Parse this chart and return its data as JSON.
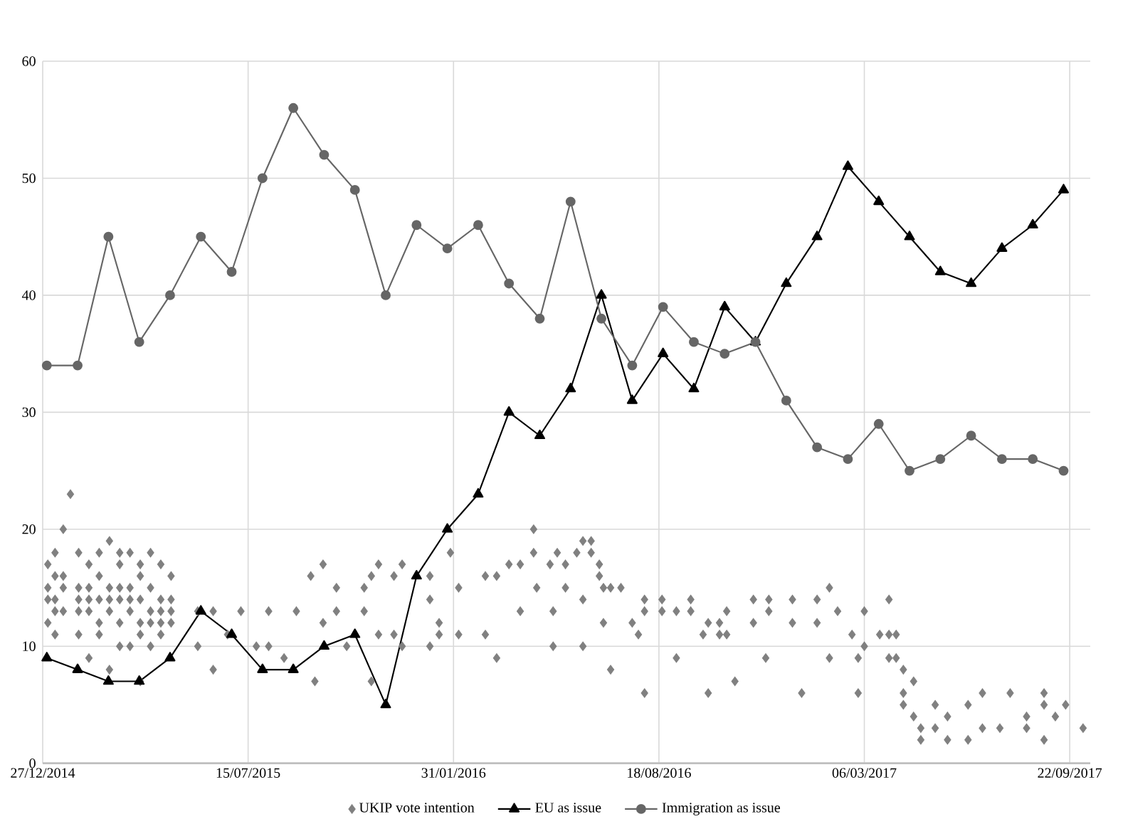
{
  "chart_data": {
    "type": "line",
    "xlim": [
      "2014-12-27",
      "2017-10-12"
    ],
    "xticks": [
      {
        "value": "2014-12-27",
        "label": "27/12/2014"
      },
      {
        "value": "2015-07-15",
        "label": "15/07/2015"
      },
      {
        "value": "2016-01-31",
        "label": "31/01/2016"
      },
      {
        "value": "2016-08-18",
        "label": "18/08/2016"
      },
      {
        "value": "2017-03-06",
        "label": "06/03/2017"
      },
      {
        "value": "2017-09-22",
        "label": "22/09/2017"
      }
    ],
    "ylim": [
      0,
      60
    ],
    "yticks": [
      0,
      10,
      20,
      30,
      40,
      50,
      60
    ],
    "grid": true,
    "legend": "bottom",
    "series": [
      {
        "name": "UKIP vote intention",
        "type": "scatter",
        "marker": "diamond",
        "color": "#808080",
        "x": [
          "2015-01-01",
          "2015-01-01",
          "2015-01-01",
          "2015-01-01",
          "2015-01-08",
          "2015-01-08",
          "2015-01-08",
          "2015-01-08",
          "2015-01-08",
          "2015-01-16",
          "2015-01-16",
          "2015-01-16",
          "2015-01-16",
          "2015-01-23",
          "2015-01-31",
          "2015-01-31",
          "2015-01-31",
          "2015-01-31",
          "2015-01-31",
          "2015-02-10",
          "2015-02-10",
          "2015-02-10",
          "2015-02-10",
          "2015-02-10",
          "2015-02-20",
          "2015-02-20",
          "2015-02-20",
          "2015-02-20",
          "2015-02-20",
          "2015-03-02",
          "2015-03-02",
          "2015-03-02",
          "2015-03-02",
          "2015-03-02",
          "2015-03-12",
          "2015-03-12",
          "2015-03-12",
          "2015-03-12",
          "2015-03-12",
          "2015-03-12",
          "2015-03-22",
          "2015-03-22",
          "2015-03-22",
          "2015-03-22",
          "2015-03-22",
          "2015-04-01",
          "2015-04-01",
          "2015-04-01",
          "2015-04-01",
          "2015-04-01",
          "2015-04-01",
          "2015-04-11",
          "2015-04-11",
          "2015-04-11",
          "2015-04-11",
          "2015-04-11",
          "2015-04-21",
          "2015-04-21",
          "2015-04-21",
          "2015-04-21",
          "2015-04-21",
          "2015-05-01",
          "2015-05-01",
          "2015-05-01",
          "2015-05-01",
          "2015-05-27",
          "2015-05-27",
          "2015-06-11",
          "2015-06-11",
          "2015-06-25",
          "2015-07-08",
          "2015-07-23",
          "2015-08-04",
          "2015-08-04",
          "2015-08-19",
          "2015-08-31",
          "2015-09-14",
          "2015-09-18",
          "2015-09-26",
          "2015-09-26",
          "2015-10-09",
          "2015-10-09",
          "2015-10-19",
          "2015-11-05",
          "2015-11-05",
          "2015-11-12",
          "2015-11-12",
          "2015-11-19",
          "2015-11-19",
          "2015-12-04",
          "2015-12-04",
          "2015-12-12",
          "2015-12-12",
          "2016-01-08",
          "2016-01-08",
          "2016-01-08",
          "2016-01-17",
          "2016-01-17",
          "2016-01-28",
          "2016-02-05",
          "2016-02-05",
          "2016-03-02",
          "2016-03-02",
          "2016-03-13",
          "2016-03-13",
          "2016-03-25",
          "2016-04-05",
          "2016-04-05",
          "2016-04-18",
          "2016-04-18",
          "2016-04-21",
          "2016-05-04",
          "2016-05-07",
          "2016-05-07",
          "2016-05-11",
          "2016-05-19",
          "2016-05-19",
          "2016-05-30",
          "2016-06-05",
          "2016-06-05",
          "2016-06-05",
          "2016-06-13",
          "2016-06-13",
          "2016-06-21",
          "2016-06-21",
          "2016-06-25",
          "2016-06-25",
          "2016-07-02",
          "2016-07-02",
          "2016-07-12",
          "2016-07-23",
          "2016-07-29",
          "2016-08-04",
          "2016-08-04",
          "2016-08-04",
          "2016-08-21",
          "2016-08-21",
          "2016-09-04",
          "2016-09-04",
          "2016-09-18",
          "2016-09-18",
          "2016-09-30",
          "2016-10-05",
          "2016-10-05",
          "2016-10-16",
          "2016-10-16",
          "2016-10-23",
          "2016-10-23",
          "2016-10-31",
          "2016-11-18",
          "2016-11-18",
          "2016-11-30",
          "2016-12-03",
          "2016-12-03",
          "2016-12-26",
          "2016-12-26",
          "2017-01-04",
          "2017-01-19",
          "2017-01-19",
          "2017-01-31",
          "2017-01-31",
          "2017-02-08",
          "2017-02-22",
          "2017-02-28",
          "2017-02-28",
          "2017-03-06",
          "2017-03-06",
          "2017-03-21",
          "2017-03-30",
          "2017-03-30",
          "2017-03-30",
          "2017-04-06",
          "2017-04-06",
          "2017-04-13",
          "2017-04-13",
          "2017-04-13",
          "2017-04-23",
          "2017-04-23",
          "2017-04-30",
          "2017-04-30",
          "2017-05-14",
          "2017-05-14",
          "2017-05-26",
          "2017-05-26",
          "2017-06-15",
          "2017-06-15",
          "2017-06-29",
          "2017-06-29",
          "2017-07-16",
          "2017-07-26",
          "2017-08-11",
          "2017-08-11",
          "2017-08-28",
          "2017-08-28",
          "2017-08-28",
          "2017-09-08",
          "2017-09-18",
          "2017-10-05"
        ],
        "values": [
          17,
          15,
          14,
          12,
          18,
          16,
          14,
          13,
          11,
          20,
          16,
          15,
          13,
          23,
          18,
          15,
          14,
          13,
          11,
          17,
          15,
          14,
          13,
          9,
          18,
          16,
          14,
          12,
          11,
          19,
          15,
          14,
          13,
          8,
          18,
          17,
          15,
          14,
          12,
          10,
          18,
          15,
          14,
          13,
          10,
          17,
          16,
          14,
          12,
          11,
          7,
          18,
          15,
          13,
          12,
          10,
          17,
          14,
          13,
          12,
          11,
          16,
          14,
          13,
          12,
          13,
          10,
          13,
          8,
          11,
          13,
          10,
          13,
          10,
          9,
          13,
          16,
          7,
          17,
          12,
          15,
          13,
          10,
          15,
          13,
          16,
          7,
          17,
          11,
          16,
          11,
          17,
          10,
          16,
          14,
          10,
          12,
          11,
          18,
          15,
          11,
          16,
          11,
          9,
          16,
          17,
          17,
          13,
          20,
          18,
          15,
          17,
          13,
          10,
          18,
          17,
          15,
          18,
          19,
          14,
          10,
          19,
          18,
          17,
          16,
          15,
          12,
          15,
          8,
          15,
          12,
          11,
          14,
          13,
          6,
          14,
          13,
          13,
          9,
          14,
          13,
          11,
          12,
          6,
          12,
          11,
          13,
          11,
          7,
          14,
          12,
          9,
          14,
          13,
          14,
          12,
          6,
          14,
          12,
          15,
          9,
          13,
          11,
          9,
          6,
          13,
          10,
          11,
          14,
          11,
          9,
          11,
          9,
          8,
          6,
          5,
          7,
          4,
          3,
          2,
          5,
          3,
          4,
          2,
          5,
          2,
          6,
          3,
          3,
          6,
          4,
          3,
          6,
          5,
          2,
          4,
          5,
          3
        ]
      },
      {
        "name": "EU as issue",
        "marker": "triangle",
        "line_style": "solid",
        "color": "#000000",
        "x": [
          "2014-12-31",
          "2015-01-30",
          "2015-03-01",
          "2015-03-31",
          "2015-04-30",
          "2015-05-30",
          "2015-06-29",
          "2015-07-29",
          "2015-08-28",
          "2015-09-27",
          "2015-10-27",
          "2015-11-26",
          "2015-12-26",
          "2016-01-25",
          "2016-02-24",
          "2016-03-25",
          "2016-04-24",
          "2016-05-24",
          "2016-06-23",
          "2016-07-23",
          "2016-08-22",
          "2016-09-21",
          "2016-10-21",
          "2016-11-20",
          "2016-12-20",
          "2017-01-19",
          "2017-02-18",
          "2017-03-20",
          "2017-04-19",
          "2017-05-19",
          "2017-06-18",
          "2017-07-18",
          "2017-08-17",
          "2017-09-16"
        ],
        "values": [
          9,
          8,
          7,
          7,
          9,
          13,
          11,
          8,
          8,
          10,
          11,
          5,
          16,
          20,
          23,
          30,
          28,
          32,
          40,
          31,
          35,
          32,
          39,
          36,
          41,
          45,
          51,
          48,
          45,
          42,
          41,
          44,
          46,
          49
        ]
      },
      {
        "name": "Immigration as issue",
        "marker": "circle",
        "line_style": "solid",
        "color": "#666666",
        "x": [
          "2014-12-31",
          "2015-01-30",
          "2015-03-01",
          "2015-03-31",
          "2015-04-30",
          "2015-05-30",
          "2015-06-29",
          "2015-07-29",
          "2015-08-28",
          "2015-09-27",
          "2015-10-27",
          "2015-11-26",
          "2015-12-26",
          "2016-01-25",
          "2016-02-24",
          "2016-03-25",
          "2016-04-24",
          "2016-05-24",
          "2016-06-23",
          "2016-07-23",
          "2016-08-22",
          "2016-09-21",
          "2016-10-21",
          "2016-11-20",
          "2016-12-20",
          "2017-01-19",
          "2017-02-18",
          "2017-03-20",
          "2017-04-19",
          "2017-05-19",
          "2017-06-18",
          "2017-07-18",
          "2017-08-17",
          "2017-09-16"
        ],
        "values": [
          34,
          34,
          45,
          36,
          40,
          45,
          42,
          50,
          56,
          52,
          49,
          40,
          46,
          44,
          46,
          41,
          38,
          48,
          38,
          34,
          39,
          36,
          35,
          36,
          31,
          27,
          26,
          29,
          25,
          26,
          28,
          26,
          26,
          25
        ]
      }
    ]
  }
}
